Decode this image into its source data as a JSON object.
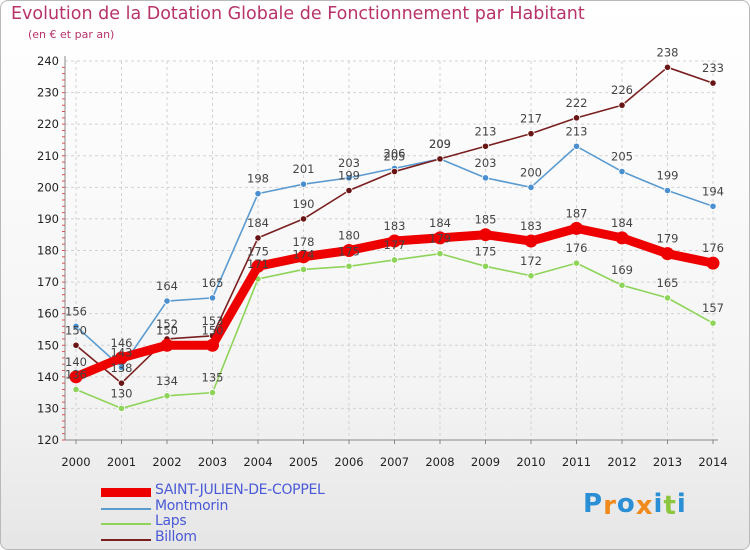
{
  "title": "Evolution de la Dotation Globale de Fonctionnement par Habitant",
  "subtitle": "(en € et par an)",
  "logo": {
    "letters": [
      "P",
      "r",
      "o",
      "x",
      "i",
      "t",
      "i"
    ],
    "colors": [
      "#2b8fd6",
      "#f08a1c",
      "#2b8fd6",
      "#f08a1c",
      "#2b8fd6",
      "#8cc63f",
      "#2b8fd6"
    ]
  },
  "chart_data": {
    "type": "line",
    "title": "Evolution de la Dotation Globale de Fonctionnement par Habitant",
    "subtitle": "(en € et par an)",
    "x": [
      "2000",
      "2001",
      "2002",
      "2003",
      "2004",
      "2005",
      "2006",
      "2007",
      "2008",
      "2009",
      "2010",
      "2011",
      "2012",
      "2013",
      "2014"
    ],
    "ylim": [
      120,
      240
    ],
    "yticks": [
      120,
      130,
      140,
      150,
      160,
      170,
      180,
      190,
      200,
      210,
      220,
      230,
      240
    ],
    "grid": true,
    "legend_position": "bottom-left",
    "series": [
      {
        "name": "SAINT-JULIEN-DE-COPPEL",
        "color": "#ee0000",
        "values": [
          140,
          146,
          150,
          150,
          175,
          178,
          180,
          183,
          184,
          185,
          183,
          187,
          184,
          179,
          176
        ]
      },
      {
        "name": "Montmorin",
        "color": "#5b9bd0",
        "values": [
          156,
          143,
          164,
          165,
          198,
          201,
          203,
          206,
          209,
          203,
          200,
          213,
          205,
          199,
          194
        ]
      },
      {
        "name": "Laps",
        "color": "#8fd45a",
        "values": [
          136,
          130,
          134,
          135,
          171,
          174,
          175,
          177,
          179,
          175,
          172,
          176,
          169,
          165,
          157
        ]
      },
      {
        "name": "Billom",
        "color": "#7a1f1f",
        "values": [
          150,
          138,
          152,
          153,
          184,
          190,
          199,
          205,
          209,
          213,
          217,
          222,
          226,
          238,
          233
        ]
      }
    ]
  }
}
